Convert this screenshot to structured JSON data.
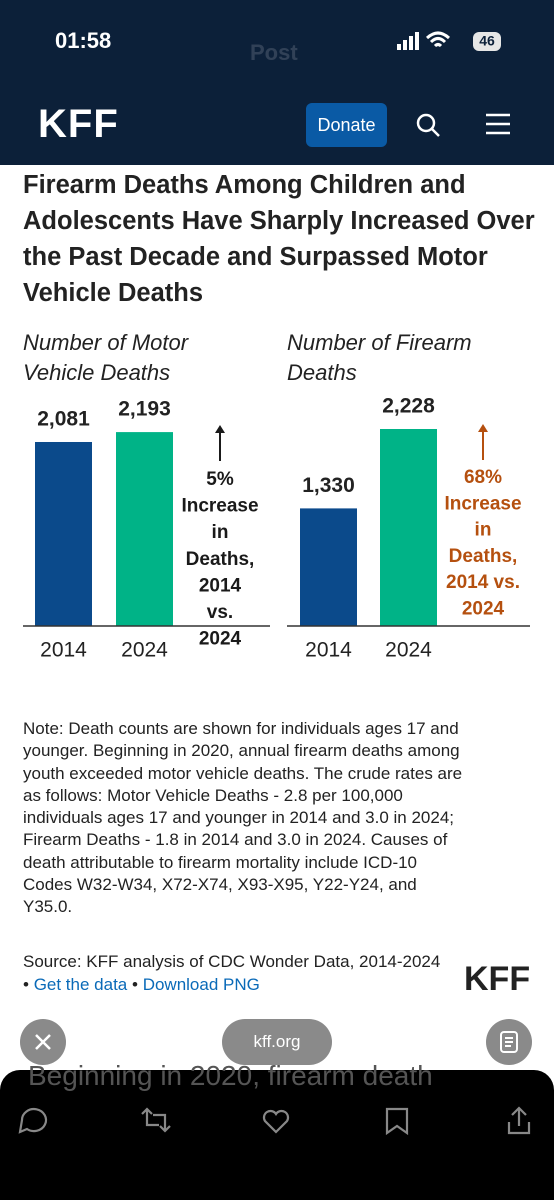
{
  "status_bar": {
    "time": "01:58",
    "battery": "46",
    "back_title": "Post"
  },
  "site_header": {
    "logo": "KFF",
    "donate": "Donate"
  },
  "headline": "Firearm Deaths Among Children and Adolescents Have Sharply Increased Over the Past Decade and Surpassed Motor Vehicle Deaths",
  "chart_data": [
    {
      "type": "bar",
      "title": "Number of Motor Vehicle Deaths",
      "categories": [
        "2014",
        "2024"
      ],
      "values": [
        2081,
        2193
      ],
      "value_labels": [
        "2,081",
        "2,193"
      ],
      "colors": [
        "#0b4a8b",
        "#00b387"
      ],
      "annotation": [
        "5%",
        "Increase",
        "in",
        "Deaths,",
        "2014",
        "vs.",
        "2024"
      ],
      "annotation_color": "#1a1a1a"
    },
    {
      "type": "bar",
      "title": "Number of Firearm Deaths",
      "categories": [
        "2014",
        "2024"
      ],
      "values": [
        1330,
        2228
      ],
      "value_labels": [
        "1,330",
        "2,228"
      ],
      "colors": [
        "#0b4a8b",
        "#00b387"
      ],
      "annotation": [
        "68%",
        "Increase",
        "in",
        "Deaths,",
        "2014 vs.",
        "2024"
      ],
      "annotation_color": "#b5500f"
    }
  ],
  "note": "Note: Death counts are shown for individuals ages 17 and younger. Beginning in 2020, annual firearm deaths among youth exceeded motor vehicle deaths. The crude rates are as follows: Motor Vehicle Deaths - 2.8 per 100,000 individuals ages 17 and younger in 2014 and 3.0 in 2024; Firearm Deaths - 1.8 in 2014 and 3.0 in 2024. Causes of death attributable to firearm mortality include ICD-10 Codes W32-W34, X72-X74, X93-X95, Y22-Y24, and Y35.0.",
  "source": "Source: KFF analysis of CDC Wonder Data, 2014-2024",
  "separator": "•",
  "links": [
    "Get the data",
    "Download PNG"
  ],
  "footer_logo": "KFF",
  "browser_url": "kff.org",
  "peek_text": "Beginning in 2020, firearm death"
}
